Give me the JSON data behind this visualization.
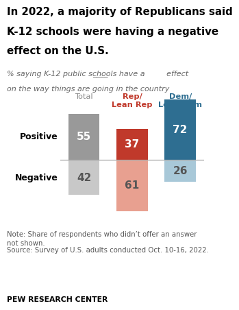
{
  "title_lines": [
    "In 2022, a majority of Republicans said",
    "K-12 schools were having a negative",
    "effect on the U.S."
  ],
  "subtitle_line1": "% saying K-12 public schools have a        effect",
  "subtitle_line2": "on the way things are going in the country",
  "subtitle_underline": "____",
  "categories": [
    "Total",
    "Rep/\nLean Rep",
    "Dem/\nLean Dem"
  ],
  "positive_values": [
    55,
    37,
    72
  ],
  "negative_values": [
    42,
    61,
    26
  ],
  "positive_colors": [
    "#999999",
    "#c0392b",
    "#2e6e91"
  ],
  "negative_colors": [
    "#c8c8c8",
    "#e8a090",
    "#a8c8d8"
  ],
  "pos_text_colors": [
    "white",
    "white",
    "white"
  ],
  "neg_text_colors": [
    "#555555",
    "#555555",
    "#555555"
  ],
  "row_labels": [
    "Positive",
    "Negative"
  ],
  "category_colors": [
    "#888888",
    "#c0392b",
    "#2e6e91"
  ],
  "note": "Note: Share of respondents who didn’t offer an answer\nnot shown.",
  "source": "Source: Survey of U.S. adults conducted Oct. 10-16, 2022.",
  "footer": "PEW RESEARCH CENTER",
  "bg_color": "#ffffff"
}
